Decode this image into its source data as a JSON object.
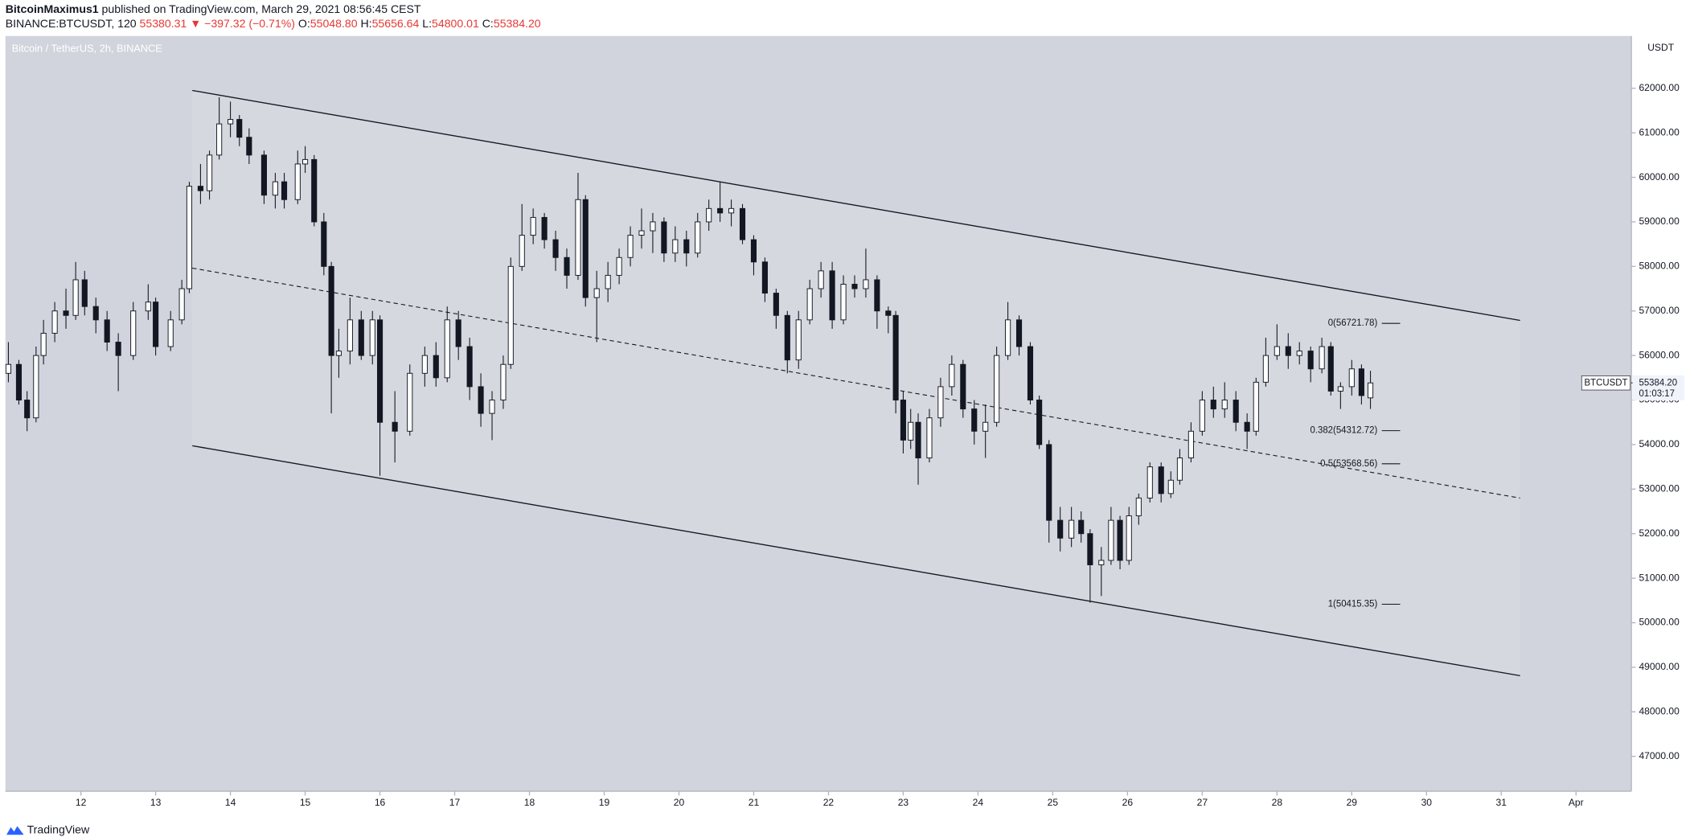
{
  "header": {
    "author": "BitcoinMaximus1",
    "published": "published on TradingView.com, March 29, 2021 08:56:45 CEST",
    "symbol": "BINANCE:BTCUSDT, 120",
    "last": "55380.31",
    "change": "▼ −397.32 (−0.71%)",
    "ohlc": [
      {
        "label": "O:",
        "value": "55048.80"
      },
      {
        "label": "H:",
        "value": "55656.64"
      },
      {
        "label": "L:",
        "value": "54800.01"
      },
      {
        "label": "C:",
        "value": "55384.20"
      }
    ]
  },
  "chart_data": {
    "type": "candlestick",
    "title": "Bitcoin / TetherUS, 2h, BINANCE",
    "axis_unit": "USDT",
    "up_color": "#ffffff",
    "down_color": "#131722",
    "background": "#d1d4dc",
    "x": [
      11.03,
      11.17,
      11.28,
      11.4,
      11.5,
      11.65,
      11.8,
      11.93,
      12.05,
      12.2,
      12.35,
      12.5,
      12.7,
      12.9,
      13.0,
      13.2,
      13.35,
      13.45,
      13.6,
      13.72,
      13.85,
      14.0,
      14.12,
      14.25,
      14.45,
      14.6,
      14.72,
      14.9,
      15.0,
      15.12,
      15.25,
      15.35,
      15.45,
      15.6,
      15.75,
      15.9,
      16.0,
      16.2,
      16.4,
      16.6,
      16.75,
      16.9,
      17.05,
      17.2,
      17.35,
      17.5,
      17.65,
      17.75,
      17.9,
      18.05,
      18.2,
      18.35,
      18.5,
      18.65,
      18.75,
      18.9,
      19.05,
      19.2,
      19.35,
      19.5,
      19.65,
      19.8,
      19.95,
      20.1,
      20.25,
      20.4,
      20.55,
      20.7,
      20.85,
      21.0,
      21.15,
      21.3,
      21.45,
      21.6,
      21.75,
      21.9,
      22.05,
      22.2,
      22.35,
      22.5,
      22.65,
      22.8,
      22.9,
      23.0,
      23.1,
      23.2,
      23.35,
      23.5,
      23.65,
      23.8,
      23.95,
      24.1,
      24.25,
      24.4,
      24.55,
      24.7,
      24.82,
      24.95,
      25.1,
      25.25,
      25.38,
      25.5,
      25.65,
      25.78,
      25.9,
      26.02,
      26.15,
      26.3,
      26.45,
      26.58,
      26.7,
      26.85,
      27.0,
      27.15,
      27.3,
      27.45,
      27.6,
      27.72,
      27.85,
      28.0,
      28.15,
      28.3,
      28.45,
      28.6,
      28.72,
      28.85,
      29.0,
      29.13,
      29.25
    ],
    "open": [
      55600,
      55800,
      55000,
      54600,
      56000,
      56500,
      57000,
      56900,
      57700,
      57100,
      56800,
      56300,
      56000,
      57000,
      57200,
      56200,
      56800,
      57500,
      59800,
      59700,
      60500,
      61200,
      61300,
      60900,
      60500,
      59600,
      59900,
      59500,
      60300,
      60400,
      59000,
      58000,
      56000,
      56100,
      56800,
      56000,
      56800,
      54500,
      54300,
      55600,
      56000,
      55500,
      56800,
      56200,
      55300,
      54700,
      55000,
      55800,
      58000,
      58700,
      59100,
      58600,
      58200,
      57800,
      59500,
      57300,
      57500,
      57800,
      58200,
      58700,
      58800,
      59000,
      58300,
      58600,
      58300,
      59000,
      59300,
      59200,
      59300,
      58600,
      58100,
      57400,
      56900,
      55900,
      56800,
      57500,
      57900,
      56800,
      57600,
      57500,
      57700,
      57000,
      56900,
      55000,
      54100,
      54500,
      53700,
      54600,
      55300,
      55800,
      54800,
      54300,
      54500,
      56000,
      56800,
      56200,
      55000,
      54000,
      52300,
      51900,
      52300,
      52000,
      51300,
      51400,
      52300,
      51400,
      52400,
      52800,
      53500,
      52900,
      53200,
      53700,
      54300,
      55000,
      54800,
      55000,
      54500,
      54300,
      55400,
      56000,
      56200,
      56000,
      56100,
      55700,
      56200,
      55200,
      55300,
      55700,
      55048.8
    ],
    "high": [
      56300,
      55900,
      55200,
      56200,
      56800,
      57200,
      57500,
      58100,
      57900,
      57300,
      57000,
      56500,
      57200,
      57600,
      57300,
      57000,
      57700,
      59900,
      60300,
      60600,
      61800,
      61700,
      61400,
      61100,
      60600,
      60100,
      60100,
      60600,
      60700,
      60500,
      59200,
      58100,
      56600,
      57300,
      57000,
      57000,
      56900,
      55200,
      55800,
      56200,
      56300,
      57100,
      57000,
      56400,
      55600,
      55200,
      56000,
      58200,
      59400,
      59300,
      59200,
      58800,
      58400,
      60100,
      59600,
      57900,
      58100,
      58400,
      58900,
      59300,
      59200,
      59100,
      58900,
      58800,
      59200,
      59500,
      59900,
      59500,
      59400,
      58700,
      58200,
      57500,
      57000,
      57000,
      57700,
      58100,
      58100,
      57800,
      57800,
      58400,
      57800,
      57100,
      57000,
      55200,
      54800,
      54700,
      54800,
      55500,
      56000,
      55900,
      55000,
      54900,
      56200,
      57200,
      56900,
      56300,
      55100,
      54100,
      52600,
      52600,
      52500,
      52100,
      51700,
      52600,
      52400,
      52600,
      52900,
      53600,
      53600,
      53400,
      53900,
      54500,
      55200,
      55300,
      55400,
      55200,
      54700,
      55500,
      56400,
      56700,
      56500,
      56300,
      56200,
      56400,
      56300,
      55400,
      55900,
      55800,
      55656.64
    ],
    "low": [
      55400,
      54900,
      54300,
      54500,
      55800,
      56300,
      56600,
      56800,
      56900,
      56500,
      56100,
      55200,
      55900,
      56800,
      56000,
      56100,
      56700,
      57400,
      59400,
      59500,
      60400,
      60900,
      60700,
      60300,
      59400,
      59300,
      59300,
      59400,
      60100,
      58900,
      57800,
      54700,
      55500,
      55800,
      55900,
      55800,
      53300,
      53600,
      54200,
      55300,
      55300,
      55400,
      55900,
      55000,
      54400,
      54100,
      54800,
      55700,
      57900,
      58500,
      58400,
      57900,
      57500,
      57700,
      57100,
      56300,
      57200,
      57600,
      58000,
      58400,
      58300,
      58100,
      58100,
      58000,
      58200,
      58800,
      59000,
      58900,
      58500,
      57800,
      57200,
      56600,
      55600,
      55700,
      56700,
      57300,
      56600,
      56700,
      57300,
      57300,
      56600,
      56500,
      54700,
      53800,
      53900,
      53100,
      53600,
      54400,
      55100,
      54600,
      54000,
      53700,
      54400,
      55900,
      56000,
      54900,
      53900,
      51800,
      51600,
      51700,
      51800,
      50450,
      50600,
      51300,
      51200,
      51300,
      52200,
      52700,
      52700,
      52800,
      53100,
      53600,
      54200,
      54600,
      54600,
      54300,
      53900,
      54200,
      55300,
      55900,
      55700,
      55800,
      55400,
      55600,
      55100,
      54800,
      55100,
      54900,
      54800.01
    ],
    "close": [
      55800,
      55000,
      54600,
      56000,
      56500,
      57000,
      56900,
      57700,
      57100,
      56800,
      56300,
      56000,
      57000,
      57200,
      56200,
      56800,
      57500,
      59800,
      59700,
      60500,
      61200,
      61300,
      60900,
      60500,
      59600,
      59900,
      59500,
      60300,
      60400,
      59000,
      58000,
      56000,
      56100,
      56800,
      56000,
      56800,
      54500,
      54300,
      55600,
      56000,
      55500,
      56800,
      56200,
      55300,
      54700,
      55000,
      55800,
      58000,
      58700,
      59100,
      58600,
      58200,
      57800,
      59500,
      57300,
      57500,
      57800,
      58200,
      58700,
      58800,
      59000,
      58300,
      58600,
      58300,
      59000,
      59300,
      59200,
      59300,
      58600,
      58100,
      57400,
      56900,
      55900,
      56800,
      57500,
      57900,
      56800,
      57600,
      57500,
      57700,
      57000,
      56900,
      55000,
      54100,
      54500,
      53700,
      54600,
      55300,
      55800,
      54800,
      54300,
      54500,
      56000,
      56800,
      56200,
      55000,
      54000,
      52300,
      51900,
      52300,
      52000,
      51300,
      51400,
      52300,
      51400,
      52400,
      52800,
      53500,
      52900,
      53200,
      53700,
      54300,
      55000,
      54800,
      55000,
      54500,
      54300,
      55400,
      56000,
      56200,
      56000,
      56100,
      55700,
      56200,
      55200,
      55300,
      55700,
      55100,
      55384.2
    ],
    "xlim": [
      10.99,
      32.74
    ],
    "xticks": [
      12,
      13,
      14,
      15,
      16,
      17,
      18,
      19,
      20,
      21,
      22,
      23,
      24,
      25,
      26,
      27,
      28,
      29,
      30,
      31,
      {
        "value": 32,
        "label": "Apr"
      }
    ],
    "ylim": [
      46217,
      63174
    ],
    "yticks": [
      {
        "value": 47000,
        "label": "47000.00"
      },
      {
        "value": 48000,
        "label": "48000.00"
      },
      {
        "value": 49000,
        "label": "49000.00"
      },
      {
        "value": 50000,
        "label": "50000.00"
      },
      {
        "value": 51000,
        "label": "51000.00"
      },
      {
        "value": 52000,
        "label": "52000.00"
      },
      {
        "value": 53000,
        "label": "53000.00"
      },
      {
        "value": 54000,
        "label": "54000.00"
      },
      {
        "value": 55000,
        "label": "55000.00"
      },
      {
        "value": 56000,
        "label": "56000.00"
      },
      {
        "value": 57000,
        "label": "57000.00"
      },
      {
        "value": 58000,
        "label": "58000.00"
      },
      {
        "value": 59000,
        "label": "59000.00"
      },
      {
        "value": 60000,
        "label": "60000.00"
      },
      {
        "value": 61000,
        "label": "61000.00"
      },
      {
        "value": 62000,
        "label": "62000.00"
      }
    ],
    "fib_levels": [
      {
        "value": 56721.78,
        "label": "0(56721.78)"
      },
      {
        "value": 54312.72,
        "label": "0.382(54312.72)"
      },
      {
        "value": 53568.56,
        "label": "0.5(53568.56)"
      },
      {
        "value": 50415.35,
        "label": "1(50415.35)"
      }
    ],
    "price_tag": {
      "name": "BTCUSDT",
      "value": 55384.2,
      "label": "55384.20",
      "countdown": "01:03:17"
    }
  },
  "footer": {
    "brand": "TradingView"
  }
}
